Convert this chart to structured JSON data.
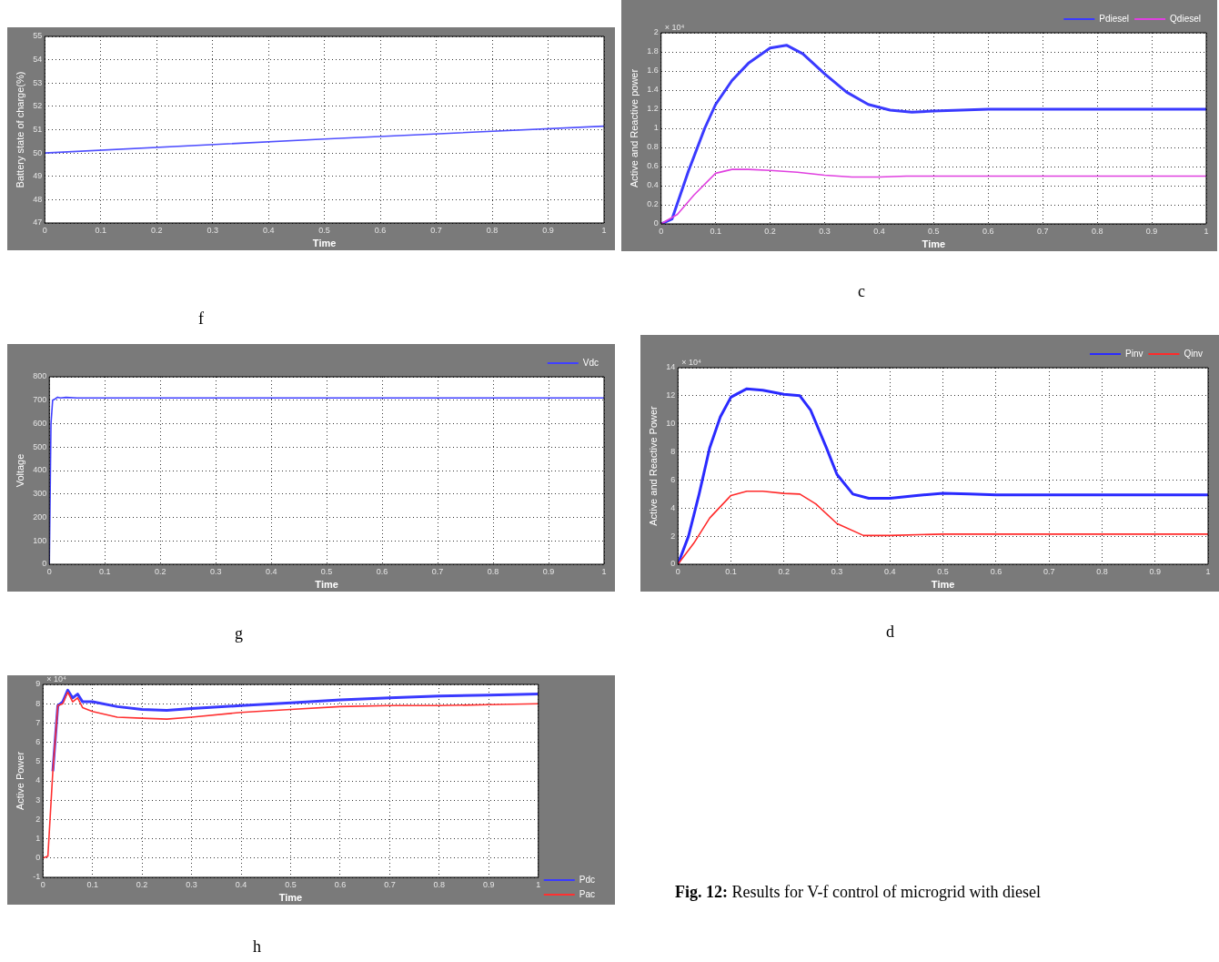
{
  "chart_data": [
    {
      "type": "line",
      "title": "f",
      "xlabel": "Time",
      "ylabel": "Battery state of charge(%)",
      "xlim": [
        0,
        1
      ],
      "xticks": [
        0,
        0.1,
        0.2,
        0.3,
        0.4,
        0.5,
        0.6,
        0.7,
        0.8,
        0.9,
        1
      ],
      "ylim": [
        47,
        55
      ],
      "yticks": [
        47,
        48,
        49,
        50,
        51,
        52,
        53,
        54,
        55
      ],
      "grid": true,
      "series": [
        {
          "color": "#5050ff",
          "x": [
            0,
            0.5,
            1
          ],
          "values": [
            50,
            50.6,
            51.15
          ]
        }
      ]
    },
    {
      "type": "line",
      "title": "c",
      "xlabel": "Time",
      "ylabel": "Active and Reactive power",
      "annotations": [
        "× 10⁴"
      ],
      "xlim": [
        0,
        1
      ],
      "xticks": [
        0,
        0.1,
        0.2,
        0.3,
        0.4,
        0.5,
        0.6,
        0.7,
        0.8,
        0.9,
        1
      ],
      "ylim": [
        0,
        2
      ],
      "yticks": [
        0,
        0.2,
        0.4,
        0.6,
        0.8,
        1,
        1.2,
        1.4,
        1.6,
        1.8,
        2
      ],
      "grid": true,
      "legend": "top right",
      "series": [
        {
          "name": "Pdiesel",
          "color": "#3a3aff",
          "x": [
            0,
            0.02,
            0.05,
            0.08,
            0.1,
            0.13,
            0.16,
            0.2,
            0.23,
            0.26,
            0.3,
            0.34,
            0.38,
            0.42,
            0.46,
            0.5,
            0.55,
            0.6,
            1
          ],
          "values": [
            0,
            0.05,
            0.55,
            1,
            1.25,
            1.5,
            1.68,
            1.84,
            1.87,
            1.78,
            1.57,
            1.38,
            1.25,
            1.19,
            1.17,
            1.18,
            1.19,
            1.2,
            1.2
          ]
        },
        {
          "name": "Qdiesel",
          "color": "#e040e0",
          "x": [
            0,
            0.03,
            0.06,
            0.1,
            0.13,
            0.16,
            0.2,
            0.25,
            0.3,
            0.35,
            0.4,
            0.45,
            1
          ],
          "values": [
            0,
            0.1,
            0.3,
            0.53,
            0.57,
            0.57,
            0.56,
            0.54,
            0.51,
            0.49,
            0.49,
            0.5,
            0.5
          ]
        }
      ]
    },
    {
      "type": "line",
      "title": "g",
      "xlabel": "Time",
      "ylabel": "Voltage",
      "xlim": [
        0,
        1
      ],
      "xticks": [
        0,
        0.1,
        0.2,
        0.3,
        0.4,
        0.5,
        0.6,
        0.7,
        0.8,
        0.9,
        1
      ],
      "ylim": [
        0,
        800
      ],
      "yticks": [
        0,
        100,
        200,
        300,
        400,
        500,
        600,
        700,
        800
      ],
      "grid": true,
      "legend": "top right",
      "series": [
        {
          "name": "Vdc",
          "color": "#4040ff",
          "x": [
            0,
            0.003,
            0.006,
            0.01,
            0.015,
            0.02,
            0.03,
            0.05,
            0.1,
            1
          ],
          "values": [
            0,
            600,
            700,
            705,
            713,
            710,
            712,
            710,
            710,
            710
          ]
        }
      ]
    },
    {
      "type": "line",
      "title": "d",
      "xlabel": "Time",
      "ylabel": "Active and Reactive Power",
      "annotations": [
        "× 10⁴"
      ],
      "xlim": [
        0,
        1
      ],
      "xticks": [
        0,
        0.1,
        0.2,
        0.3,
        0.4,
        0.5,
        0.6,
        0.7,
        0.8,
        0.9,
        1
      ],
      "ylim": [
        0,
        14
      ],
      "yticks": [
        0,
        2,
        4,
        6,
        8,
        10,
        12,
        14
      ],
      "grid": true,
      "legend": "top right",
      "series": [
        {
          "name": "Pinv",
          "color": "#2a2aff",
          "x": [
            0,
            0.02,
            0.04,
            0.06,
            0.08,
            0.1,
            0.13,
            0.16,
            0.2,
            0.23,
            0.25,
            0.28,
            0.3,
            0.33,
            0.36,
            0.4,
            0.45,
            0.5,
            0.55,
            0.6,
            1
          ],
          "values": [
            0,
            2,
            5,
            8.3,
            10.5,
            11.9,
            12.5,
            12.4,
            12.1,
            12,
            11,
            8.3,
            6.4,
            5,
            4.7,
            4.7,
            4.9,
            5.05,
            5,
            4.95,
            4.95
          ]
        },
        {
          "name": "Qinv",
          "color": "#ff2a2a",
          "x": [
            0,
            0.03,
            0.06,
            0.1,
            0.13,
            0.16,
            0.2,
            0.23,
            0.26,
            0.3,
            0.35,
            0.4,
            0.5,
            1
          ],
          "values": [
            0,
            1.5,
            3.3,
            4.9,
            5.2,
            5.2,
            5.05,
            5,
            4.3,
            2.9,
            2.05,
            2.05,
            2.15,
            2.15
          ]
        }
      ]
    },
    {
      "type": "line",
      "title": "h",
      "xlabel": "Time",
      "ylabel": "Active Power",
      "annotations": [
        "× 10⁴"
      ],
      "xlim": [
        0,
        1
      ],
      "xticks": [
        0,
        0.1,
        0.2,
        0.3,
        0.4,
        0.5,
        0.6,
        0.7,
        0.8,
        0.9,
        1
      ],
      "ylim": [
        -1,
        9
      ],
      "yticks": [
        -1,
        0,
        1,
        2,
        3,
        4,
        5,
        6,
        7,
        8,
        9
      ],
      "grid": true,
      "legend": "right",
      "series": [
        {
          "name": "Pdc",
          "color": "#3a3aff",
          "x": [
            0.02,
            0.03,
            0.04,
            0.05,
            0.06,
            0.07,
            0.08,
            0.1,
            0.15,
            0.2,
            0.25,
            0.3,
            0.4,
            0.5,
            0.6,
            0.7,
            0.8,
            0.9,
            1
          ],
          "values": [
            4.5,
            7.9,
            8.1,
            8.7,
            8.3,
            8.5,
            8.1,
            8.1,
            7.85,
            7.7,
            7.65,
            7.75,
            7.9,
            8.05,
            8.2,
            8.3,
            8.4,
            8.45,
            8.5
          ]
        },
        {
          "name": "Pac",
          "color": "#ff3030",
          "x": [
            0,
            0.01,
            0.02,
            0.03,
            0.04,
            0.05,
            0.06,
            0.07,
            0.08,
            0.1,
            0.15,
            0.2,
            0.25,
            0.3,
            0.4,
            0.5,
            0.6,
            0.7,
            0.8,
            0.9,
            1
          ],
          "values": [
            0,
            0.1,
            4.5,
            7.9,
            8,
            8.6,
            8.1,
            8.3,
            7.8,
            7.6,
            7.3,
            7.25,
            7.2,
            7.3,
            7.55,
            7.7,
            7.85,
            7.9,
            7.9,
            7.95,
            8
          ]
        }
      ]
    },
    {
      "type": "other",
      "title": "Fig. 12: Results for V-f control of microgrid with diesel"
    }
  ]
}
